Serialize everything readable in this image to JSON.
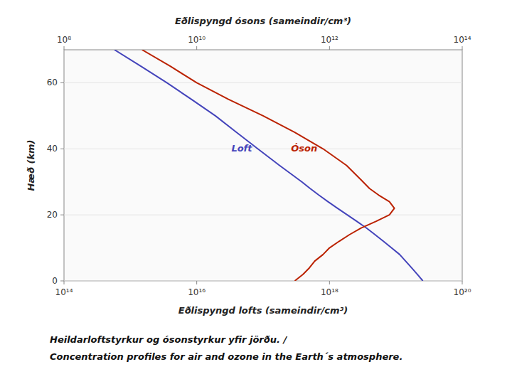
{
  "chart_data": {
    "type": "line",
    "title": "Heildarloftstyrkur og ósonstyrkur yfir jörðu. /",
    "subtitle": "Concentration profiles for air and ozone in the Earth´s atmosphere.",
    "ylabel": "Hæð  (km)",
    "xlabel": "Eðlispyngd  lofts  (sameindir/cm³)",
    "x2label": "Eðlispyngd  ósons  (sameindir/cm³)",
    "log": "x",
    "xlim": [
      100000000000000.0,
      1e+20
    ],
    "xticks": [
      {
        "value": 100000000000000.0,
        "label": "10¹⁴"
      },
      {
        "value": 1e+16,
        "label": "10¹⁶"
      },
      {
        "value": 1e+18,
        "label": "10¹⁸"
      },
      {
        "value": 1e+20,
        "label": "10²⁰"
      }
    ],
    "x2lim": [
      100000000.0,
      100000000000000.0
    ],
    "x2ticks": [
      {
        "value": 100000000.0,
        "label": "10⁸"
      },
      {
        "value": 10000000000.0,
        "label": "10¹⁰"
      },
      {
        "value": 1000000000000.0,
        "label": "10¹²"
      },
      {
        "value": 100000000000000.0,
        "label": "10¹⁴"
      }
    ],
    "ylim": [
      0,
      70
    ],
    "yticks": [
      0,
      20,
      40,
      60
    ],
    "series": [
      {
        "name": "Loft",
        "color": "#4444bb",
        "axis": "x",
        "x": [
          2.55e+19,
          2.1e+19,
          1.72e+19,
          1.4e+19,
          1.14e+19,
          8.6e+18,
          6.49e+18,
          4.86e+18,
          3.62e+18,
          2.59e+18,
          1.85e+18,
          1.32e+18,
          9.5e+17,
          6.9e+17,
          5.1e+17,
          3.83e+17,
          1.76e+17,
          8.31e+16,
          3.96e+16,
          1.91e+16,
          8300000000000000.0,
          3550000000000000.0,
          1440000000000000.0,
          576000000000000.0
        ],
        "values": [
          0,
          2,
          4,
          6,
          8,
          10,
          12,
          14,
          16,
          18,
          20,
          22,
          24,
          26,
          28,
          30,
          35,
          40,
          45,
          50,
          55,
          60,
          65,
          70
        ]
      },
      {
        "name": "Óson",
        "color": "#bb2200",
        "axis": "x2",
        "x": [
          300000000000.0,
          400000000000.0,
          500000000000.0,
          600000000000.0,
          800000000000.0,
          1000000000000.0,
          1400000000000.0,
          2000000000000.0,
          3000000000000.0,
          5000000000000.0,
          8000000000000.0,
          9500000000000.0,
          8000000000000.0,
          5500000000000.0,
          4000000000000.0,
          3200000000000.0,
          1800000000000.0,
          800000000000.0,
          300000000000.0,
          100000000000.0,
          30000000000.0,
          10000000000.0,
          4000000000.0,
          1500000000.0
        ],
        "values": [
          0,
          2,
          4,
          6,
          8,
          10,
          12,
          14,
          16,
          18,
          20,
          22,
          24,
          26,
          28,
          30,
          35,
          40,
          45,
          50,
          55,
          60,
          65,
          70
        ]
      }
    ]
  }
}
